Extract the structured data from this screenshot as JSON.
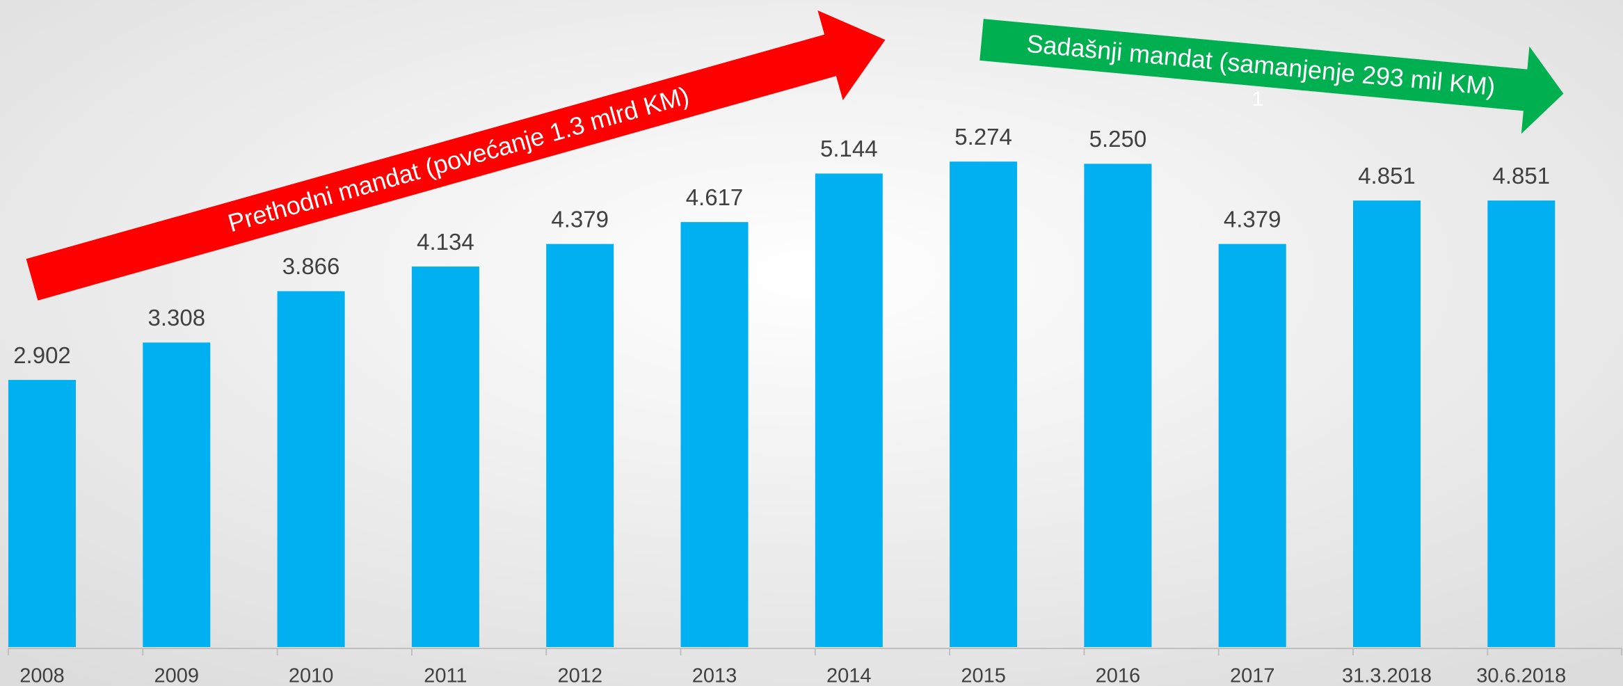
{
  "chart_data": {
    "type": "bar",
    "categories": [
      "2008",
      "2009",
      "2010",
      "2011",
      "2012",
      "2013",
      "2014",
      "2015",
      "2016",
      "2017",
      "31.3.2018",
      "30.6.2018"
    ],
    "values": [
      2.902,
      3.308,
      3.866,
      4.134,
      4.379,
      4.617,
      5.144,
      5.274,
      5.25,
      4.379,
      4.851,
      4.851
    ],
    "value_labels": [
      "2.902",
      "3.308",
      "3.866",
      "4.134",
      "4.379",
      "4.617",
      "5.144",
      "5.274",
      "5.250",
      "4.379",
      "4.851",
      "4.851"
    ],
    "color": "#00b0f0",
    "annotations": [
      {
        "text": "Prethodni mandat (povećanje 1.3 mlrd KM)",
        "color": "#ff0000"
      },
      {
        "text": "Sadašnji mandat (samanjenje 293 mil KM)",
        "color": "#00b050"
      }
    ],
    "footnote_mark": "1"
  }
}
